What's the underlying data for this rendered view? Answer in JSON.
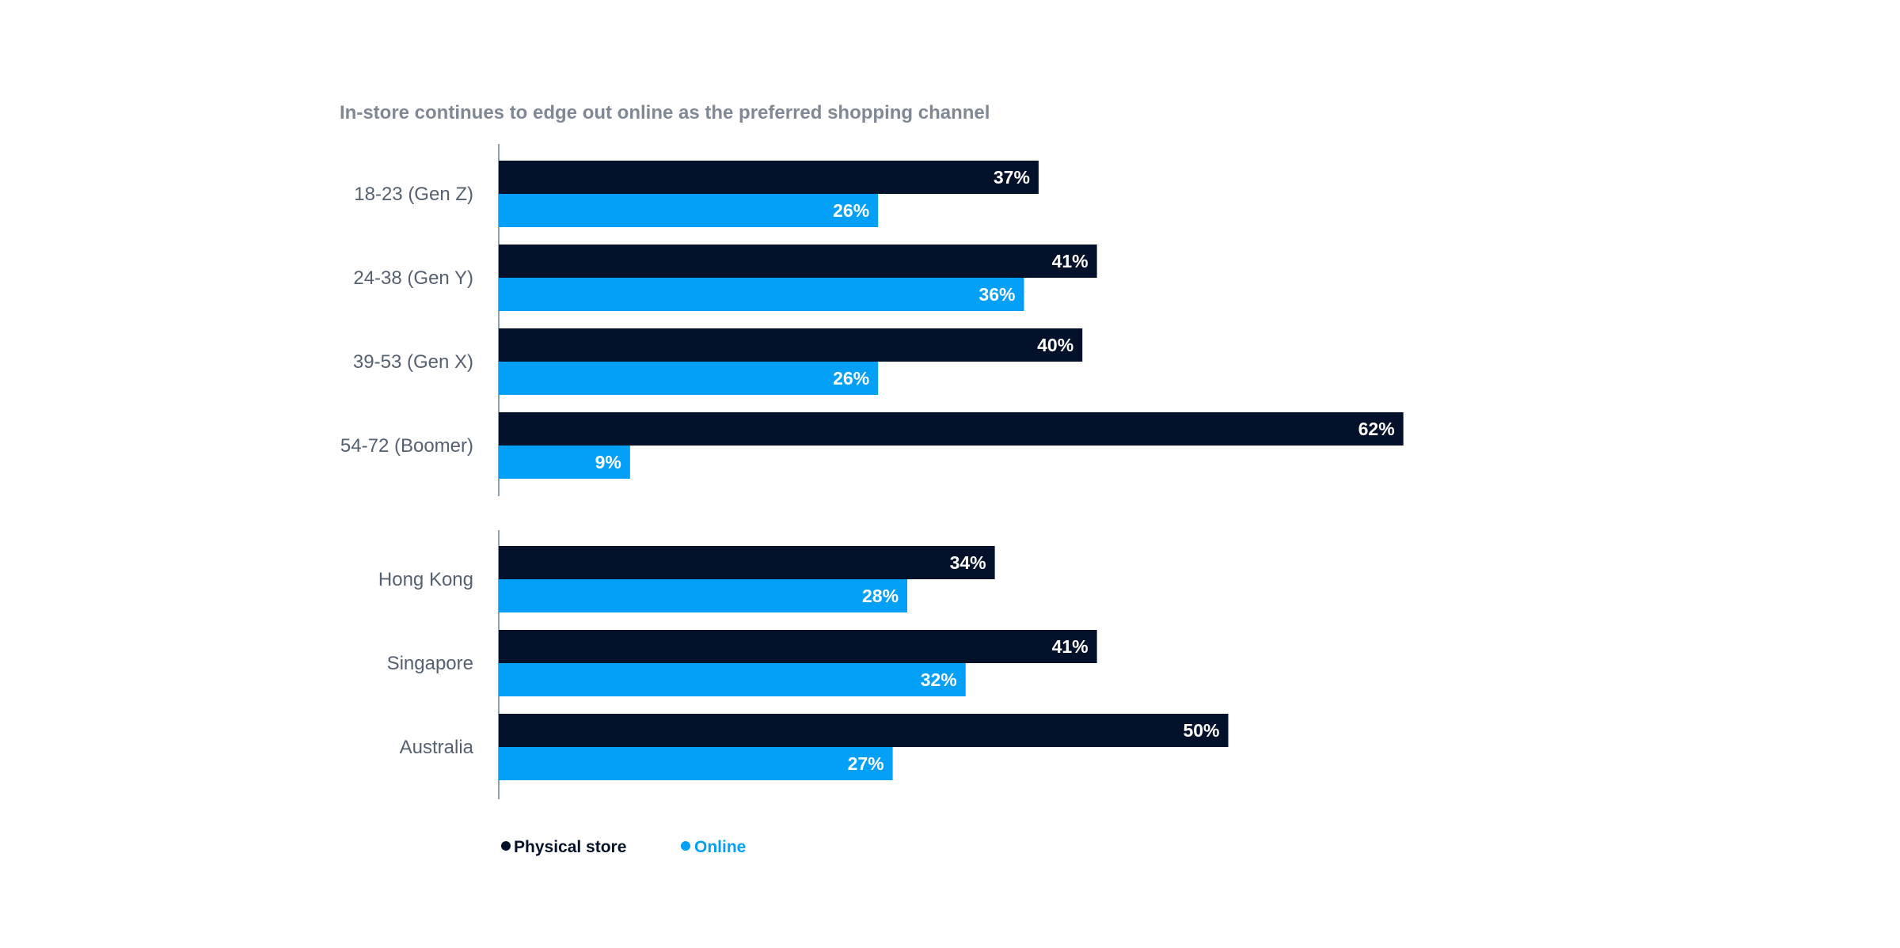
{
  "chart_data": {
    "type": "bar",
    "orientation": "horizontal",
    "title": "In-store continues to edge out online as the preferred shopping channel",
    "value_format": "{v}%",
    "groups": [
      {
        "categories": [
          "18-23  (Gen Z)",
          "24-38  (Gen Y)",
          "39-53  (Gen X)",
          "54-72  (Boomer)"
        ],
        "series": [
          {
            "name": "Physical store",
            "values": [
              37,
              41,
              40,
              62
            ]
          },
          {
            "name": "Online",
            "values": [
              26,
              36,
              26,
              9
            ]
          }
        ]
      },
      {
        "categories": [
          "Hong Kong",
          "Singapore",
          "Australia"
        ],
        "series": [
          {
            "name": "Physical store",
            "values": [
              34,
              41,
              50
            ]
          },
          {
            "name": "Online",
            "values": [
              28,
              32,
              27
            ]
          }
        ]
      }
    ],
    "legend": {
      "position": "bottom-left",
      "items": [
        {
          "label": "Physical store",
          "color": "#03112b"
        },
        {
          "label": "Online",
          "color": "#04a0f7"
        }
      ]
    },
    "colors": {
      "Physical store": "#03112b",
      "Online": "#04a0f7",
      "axis": "#8aa0b4"
    },
    "grid": false
  }
}
